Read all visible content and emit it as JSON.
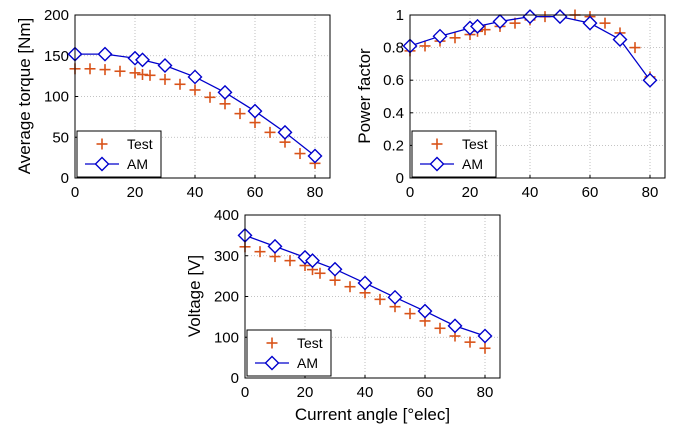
{
  "colors": {
    "test": "#D95319",
    "am": "#0000CC",
    "grid": "#B0B0B0",
    "axis": "#000000"
  },
  "chart_data": [
    {
      "id": "torque",
      "type": "line",
      "title": "",
      "xlabel": "",
      "ylabel": "Average torque [Nm]",
      "xlim": [
        0,
        85
      ],
      "ylim": [
        0,
        200
      ],
      "xticks": [
        "0",
        "20",
        "40",
        "60",
        "80"
      ],
      "yticks": [
        "0",
        "50",
        "100",
        "150",
        "200"
      ],
      "grid": true,
      "legend": "bottom-left",
      "series": [
        {
          "name": "Test",
          "marker": "plus",
          "x": [
            0,
            5,
            10,
            15,
            20,
            22.5,
            25,
            30,
            35,
            40,
            45,
            50,
            55,
            60,
            65,
            70,
            75,
            80
          ],
          "y": [
            134,
            134,
            133,
            131,
            129,
            127,
            126,
            121,
            115,
            108,
            99,
            91,
            79,
            68,
            56,
            44,
            30,
            18
          ]
        },
        {
          "name": "AM",
          "marker": "diamond",
          "x": [
            0,
            10,
            20,
            22.5,
            30,
            40,
            50,
            60,
            70,
            80
          ],
          "y": [
            152,
            152,
            147,
            145,
            138,
            124,
            105,
            82,
            56,
            27
          ]
        }
      ]
    },
    {
      "id": "pf",
      "type": "line",
      "title": "",
      "xlabel": "",
      "ylabel": "Power factor",
      "xlim": [
        0,
        85
      ],
      "ylim": [
        0,
        1
      ],
      "xticks": [
        "0",
        "20",
        "40",
        "60",
        "80"
      ],
      "yticks": [
        "0",
        "0.2",
        "0.4",
        "0.6",
        "0.8",
        "1"
      ],
      "grid": true,
      "legend": "bottom-left",
      "series": [
        {
          "name": "Test",
          "marker": "plus",
          "x": [
            0,
            5,
            10,
            15,
            20,
            22.5,
            25,
            30,
            35,
            40,
            45,
            50,
            55,
            60,
            65,
            70,
            75,
            80
          ],
          "y": [
            0.78,
            0.81,
            0.84,
            0.86,
            0.88,
            0.9,
            0.91,
            0.93,
            0.95,
            0.97,
            0.99,
            1.0,
            1.0,
            0.99,
            0.95,
            0.89,
            0.8,
            0.62
          ]
        },
        {
          "name": "AM",
          "marker": "diamond",
          "x": [
            0,
            10,
            20,
            22.5,
            30,
            40,
            50,
            60,
            70,
            80
          ],
          "y": [
            0.81,
            0.87,
            0.92,
            0.93,
            0.96,
            0.99,
            0.99,
            0.95,
            0.85,
            0.6
          ]
        }
      ]
    },
    {
      "id": "voltage",
      "type": "line",
      "title": "",
      "xlabel": "Current angle [°elec]",
      "ylabel": "Voltage [V]",
      "xlim": [
        0,
        85
      ],
      "ylim": [
        0,
        400
      ],
      "xticks": [
        "0",
        "20",
        "40",
        "60",
        "80"
      ],
      "yticks": [
        "0",
        "100",
        "200",
        "300",
        "400"
      ],
      "grid": true,
      "legend": "bottom-left",
      "series": [
        {
          "name": "Test",
          "marker": "plus",
          "x": [
            0,
            5,
            10,
            15,
            20,
            22.5,
            25,
            30,
            35,
            40,
            45,
            50,
            55,
            60,
            65,
            70,
            75,
            80
          ],
          "y": [
            322,
            310,
            298,
            288,
            276,
            266,
            257,
            240,
            224,
            209,
            193,
            175,
            158,
            140,
            122,
            103,
            88,
            73
          ]
        },
        {
          "name": "AM",
          "marker": "diamond",
          "x": [
            0,
            10,
            20,
            22.5,
            30,
            40,
            50,
            60,
            70,
            80
          ],
          "y": [
            350,
            323,
            296,
            288,
            267,
            233,
            198,
            164,
            128,
            103
          ]
        }
      ]
    }
  ]
}
